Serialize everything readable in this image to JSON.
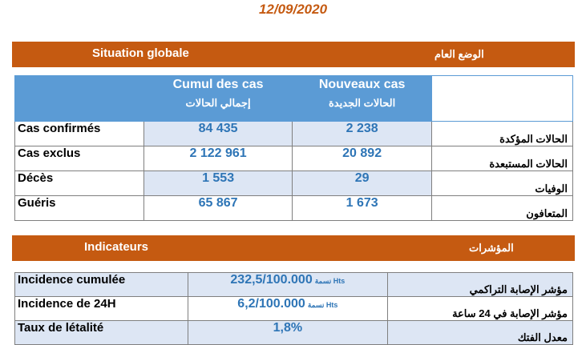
{
  "date": "12/09/2020",
  "global": {
    "title_fr": "Situation globale",
    "title_ar": "الوضع العام",
    "col_cumul_fr": "Cumul des cas",
    "col_cumul_ar": "إجمالي الحالات",
    "col_new_fr": "Nouveaux cas",
    "col_new_ar": "الحالات الجديدة",
    "rows": [
      {
        "label_fr": "Cas confirmés",
        "cumul": "84 435",
        "new": "2 238",
        "label_ar": "الحالات المؤكدة"
      },
      {
        "label_fr": "Cas exclus",
        "cumul": "2 122 961",
        "new": "20 892",
        "label_ar": "الحالات المستبعدة"
      },
      {
        "label_fr": "Décès",
        "cumul": "1 553",
        "new": "29",
        "label_ar": "الوفيات"
      },
      {
        "label_fr": "Guéris",
        "cumul": "65 867",
        "new": "1 673",
        "label_ar": "المتعافون"
      }
    ]
  },
  "indicators": {
    "title_fr": "Indicateurs",
    "title_ar": "المؤشرات",
    "rows": [
      {
        "label_fr": "Incidence cumulée",
        "value": "232,5/100.000",
        "suffix": "نسمة Hts",
        "label_ar": "مؤشر الإصابة التراكمي"
      },
      {
        "label_fr": "Incidence de 24H",
        "value": "6,2/100.000",
        "suffix": "نسمة Hts",
        "label_ar": "مؤشر الإصابة في 24 ساعة"
      },
      {
        "label_fr": "Taux de létalité",
        "value": "1,8%",
        "suffix": "",
        "label_ar": "معدل الفتك"
      }
    ]
  }
}
